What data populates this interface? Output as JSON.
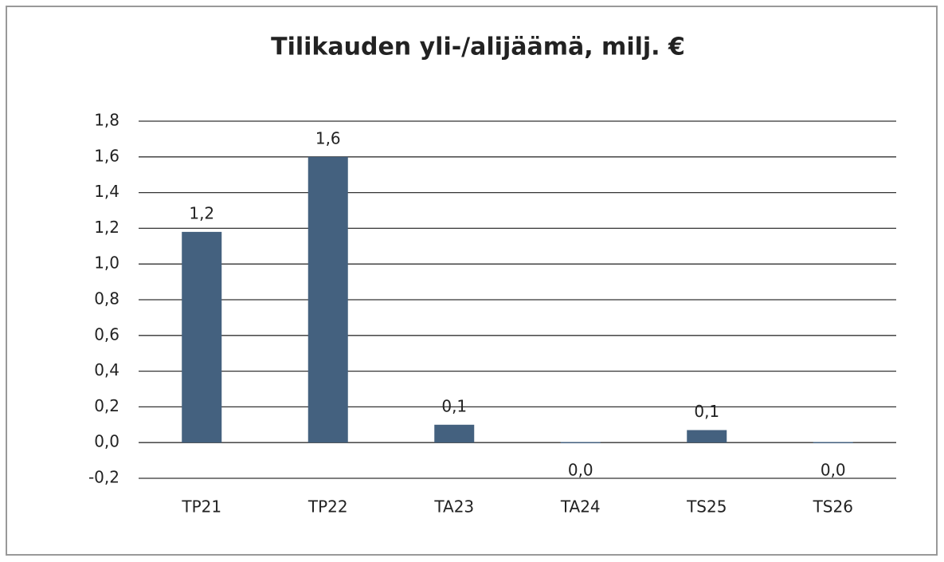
{
  "chart_data": {
    "type": "bar",
    "title": "Tilikauden yli-/alijäämä, milj. €",
    "categories": [
      "TP21",
      "TP22",
      "TA23",
      "TA24",
      "TS25",
      "TS26"
    ],
    "values": [
      1.18,
      1.6,
      0.1,
      0.003,
      0.07,
      0.003
    ],
    "value_labels": [
      "1,2",
      "1,6",
      "0,1",
      "0,0",
      "0,1",
      "0,0"
    ],
    "color": "#44617f",
    "ylim": [
      -0.2,
      1.8
    ],
    "yticks": [
      {
        "value": -0.2,
        "label": "-0,2"
      },
      {
        "value": 0,
        "label": "0,0"
      },
      {
        "value": 0.2,
        "label": "0,2"
      },
      {
        "value": 0.4,
        "label": "0,4"
      },
      {
        "value": 0.6,
        "label": "0,6"
      },
      {
        "value": 0.8,
        "label": "0,8"
      },
      {
        "value": 1.0,
        "label": "1,0"
      },
      {
        "value": 1.2,
        "label": "1,2"
      },
      {
        "value": 1.4,
        "label": "1,4"
      },
      {
        "value": 1.6,
        "label": "1,6"
      },
      {
        "value": 1.8,
        "label": "1,8"
      }
    ],
    "grid": true
  }
}
